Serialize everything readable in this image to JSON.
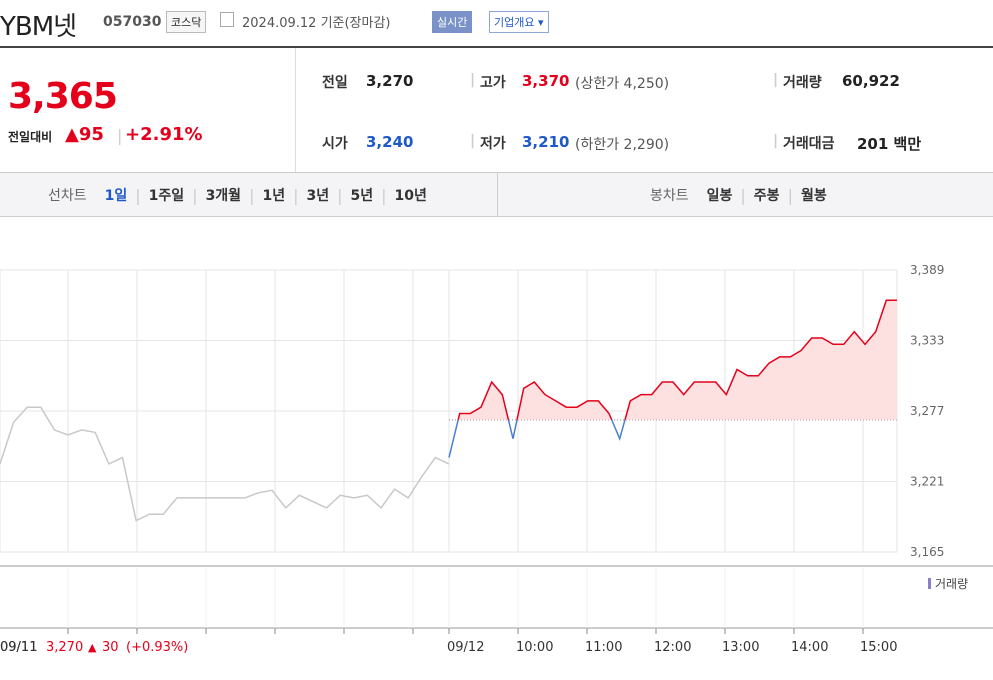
{
  "header": {
    "name": "YBM넷",
    "code": "057030",
    "market": "코스닥",
    "date": "2024.09.12 기준(장마감)",
    "realtime": "실시간",
    "company_info": "기업개요"
  },
  "summary": {
    "price": "3,365",
    "change_label": "전일대비",
    "change_arrow": "▲",
    "change": "95",
    "change_pct": "+2.91%",
    "prev_label": "전일",
    "prev": "3,270",
    "open_label": "시가",
    "open": "3,240",
    "high_label": "고가",
    "high": "3,370",
    "upper_label": "(상한가 4,250)",
    "low_label": "저가",
    "low": "3,210",
    "lower_label": "(하한가 2,290)",
    "volume_label": "거래량",
    "volume": "60,922",
    "amount_label": "거래대금",
    "amount": "201",
    "amount_unit": "백만"
  },
  "tabs": {
    "line_label": "선차트",
    "line": [
      "1일",
      "1주일",
      "3개월",
      "1년",
      "3년",
      "5년",
      "10년"
    ],
    "candle_label": "봉차트",
    "candle": [
      "일봉",
      "주봉",
      "월봉"
    ]
  },
  "chart_data": {
    "type": "line",
    "ylim": [
      3165,
      3389
    ],
    "yticks": [
      {
        "value": 3389,
        "label": "3,389"
      },
      {
        "value": 3333,
        "label": "3,333"
      },
      {
        "value": 3277,
        "label": "3,277"
      },
      {
        "value": 3221,
        "label": "3,221"
      },
      {
        "value": 3165,
        "label": "3,165"
      }
    ],
    "baseline": 3270,
    "x_labels": [
      "09/11",
      "09/12",
      "10:00",
      "11:00",
      "12:00",
      "13:00",
      "14:00",
      "15:00"
    ],
    "series": [
      {
        "name": "09/11",
        "color": "#c8c8c8",
        "values": [
          3235,
          3268,
          3280,
          3280,
          3262,
          3258,
          3262,
          3260,
          3235,
          3240,
          3190,
          3195,
          3195,
          3208,
          3208,
          3208,
          3208,
          3208,
          3208,
          3212,
          3214,
          3200,
          3210,
          3205,
          3200,
          3210,
          3208,
          3210,
          3200,
          3215,
          3208,
          3225,
          3240,
          3235
        ]
      },
      {
        "name": "09/12",
        "color": "#e4001b",
        "values": [
          3240,
          3275,
          3275,
          3280,
          3300,
          3290,
          3255,
          3295,
          3300,
          3290,
          3285,
          3280,
          3280,
          3285,
          3285,
          3275,
          3255,
          3285,
          3290,
          3290,
          3300,
          3300,
          3290,
          3300,
          3300,
          3300,
          3290,
          3310,
          3305,
          3305,
          3315,
          3320,
          3320,
          3325,
          3335,
          3335,
          3330,
          3330,
          3340,
          3330,
          3340,
          3365,
          3365
        ]
      }
    ],
    "volume_legend": "거래량",
    "footer": {
      "date": "09/11",
      "price": "3,270",
      "arrow": "▲",
      "change": "30",
      "pct": "(+0.93%)"
    }
  }
}
